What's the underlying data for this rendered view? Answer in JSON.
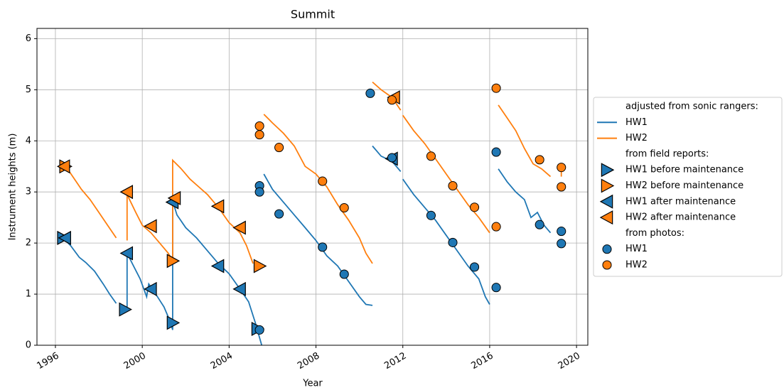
{
  "chart_data": {
    "type": "line",
    "title": "Summit",
    "x_label": "Year",
    "y_label": "Instrument heights (m)",
    "xlim": [
      1995.15,
      2020.52
    ],
    "xticks": [
      1996,
      2000,
      2004,
      2008,
      2012,
      2016,
      2020
    ],
    "ylim": [
      0,
      6.2
    ],
    "yticks": [
      0,
      1,
      2,
      3,
      4,
      5,
      6
    ],
    "grid": true,
    "legend_position": "right",
    "legend_headers": [
      "adjusted from sonic rangers:",
      "from field reports:",
      "from photos:"
    ],
    "series": [
      {
        "name": "HW1",
        "color": "#1f77b4",
        "marker": "line",
        "x": [
          1996.3,
          1996.7,
          1997.1,
          1997.4,
          1997.8,
          1998.2,
          1998.5,
          1998.8,
          null,
          1999.3,
          1999.3,
          1999.6,
          1999.9,
          2000.2,
          2000.3,
          2000.7,
          2001.0,
          2001.3,
          2001.4,
          2001.4,
          2001.6,
          2002.0,
          2002.5,
          2003.0,
          2003.5,
          2004.0,
          2004.5,
          2004.9,
          2005.2,
          2005.5,
          null,
          2005.6,
          2006.0,
          2006.5,
          2007.0,
          2007.5,
          2008.0,
          2008.5,
          2009.0,
          2009.5,
          2010.0,
          2010.3,
          2010.6,
          null,
          2010.6,
          2011.0,
          2011.5,
          2011.9,
          null,
          2012.0,
          2012.5,
          2013.0,
          2013.5,
          2014.0,
          2014.5,
          2015.0,
          2015.5,
          2015.8,
          2016.0,
          null,
          2016.4,
          2016.8,
          2017.2,
          2017.6,
          2017.9,
          2018.2,
          2018.5,
          2018.8
        ],
        "values": [
          2.12,
          1.95,
          1.72,
          1.62,
          1.45,
          1.2,
          1.0,
          0.82,
          null,
          0.75,
          1.8,
          1.55,
          1.3,
          0.95,
          1.2,
          0.95,
          0.75,
          0.45,
          0.3,
          2.82,
          2.55,
          2.3,
          2.1,
          1.85,
          1.6,
          1.4,
          1.1,
          0.85,
          0.45,
          0.0,
          null,
          3.35,
          3.05,
          2.8,
          2.55,
          2.3,
          2.05,
          1.75,
          1.55,
          1.25,
          0.95,
          0.8,
          0.78,
          null,
          3.9,
          3.7,
          3.6,
          3.4,
          null,
          3.25,
          2.95,
          2.7,
          2.45,
          2.15,
          1.85,
          1.55,
          1.3,
          0.95,
          0.8,
          null,
          3.45,
          3.2,
          3.0,
          2.85,
          2.5,
          2.6,
          2.35,
          2.2
        ]
      },
      {
        "name": "HW2",
        "color": "#ff7f0e",
        "marker": "line",
        "x": [
          1996.4,
          1996.8,
          1997.2,
          1997.6,
          1998.0,
          1998.4,
          1998.8,
          null,
          1999.3,
          1999.3,
          1999.7,
          2000.0,
          2000.4,
          2000.8,
          2001.2,
          2001.4,
          2001.4,
          2001.8,
          2002.2,
          2002.6,
          2003.0,
          2003.5,
          2004.0,
          2004.5,
          2004.8,
          2005.1,
          null,
          2005.6,
          2006.0,
          2006.5,
          2007.0,
          2007.5,
          2008.0,
          2008.5,
          2009.0,
          2009.5,
          2010.0,
          2010.3,
          2010.6,
          null,
          2010.6,
          2011.0,
          2011.5,
          2011.9,
          null,
          2012.0,
          2012.5,
          2013.0,
          2013.5,
          2014.0,
          2014.5,
          2015.0,
          2015.5,
          2016.0,
          null,
          2016.4,
          2016.8,
          2017.2,
          2017.6,
          2018.0,
          2018.4,
          2018.8,
          null,
          2019.3,
          2019.3
        ],
        "values": [
          3.55,
          3.3,
          3.05,
          2.85,
          2.6,
          2.35,
          2.1,
          null,
          2.05,
          2.95,
          2.6,
          2.35,
          2.2,
          2.0,
          1.8,
          1.65,
          3.62,
          3.45,
          3.25,
          3.1,
          2.95,
          2.7,
          2.4,
          2.2,
          1.95,
          1.6,
          null,
          4.52,
          4.35,
          4.15,
          3.9,
          3.5,
          3.35,
          3.1,
          2.75,
          2.45,
          2.1,
          1.8,
          1.6,
          null,
          5.15,
          5.0,
          4.85,
          4.6,
          null,
          4.5,
          4.2,
          3.95,
          3.65,
          3.35,
          3.05,
          2.75,
          2.5,
          2.2,
          null,
          4.7,
          4.45,
          4.2,
          3.85,
          3.55,
          3.45,
          3.3,
          null,
          3.5,
          3.3
        ]
      },
      {
        "name": "HW1 before maintenance",
        "color": "#1f77b4",
        "marker": "triangle-right",
        "x": [
          1996.35,
          1999.2,
          2001.4,
          2005.3
        ],
        "values": [
          2.1,
          0.7,
          0.44,
          0.32
        ]
      },
      {
        "name": "HW2 before maintenance",
        "color": "#ff7f0e",
        "marker": "triangle-right",
        "x": [
          1996.45,
          2001.4,
          2005.4
        ],
        "values": [
          3.5,
          1.65,
          1.55
        ]
      },
      {
        "name": "HW1 after maintenance",
        "color": "#1f77b4",
        "marker": "triangle-left",
        "x": [
          1996.45,
          1999.3,
          2000.4,
          2001.4,
          2003.5,
          2004.5,
          2011.5
        ],
        "values": [
          2.1,
          1.8,
          1.1,
          2.8,
          1.55,
          1.1,
          3.65
        ]
      },
      {
        "name": "HW2 after maintenance",
        "color": "#ff7f0e",
        "marker": "triangle-left",
        "x": [
          1996.4,
          1999.3,
          2000.4,
          2001.5,
          2003.5,
          2004.5,
          2011.6
        ],
        "values": [
          3.5,
          3.0,
          2.33,
          2.88,
          2.72,
          2.3,
          4.85
        ]
      },
      {
        "name": "HW1",
        "color": "#1f77b4",
        "marker": "circle",
        "x": [
          2005.4,
          2005.4,
          2005.4,
          2006.3,
          2008.3,
          2009.3,
          2010.5,
          2011.5,
          2013.3,
          2014.3,
          2015.3,
          2016.3,
          2016.3,
          2018.3,
          2019.3,
          2019.3
        ],
        "values": [
          0.3,
          3.12,
          3.0,
          2.57,
          1.92,
          1.39,
          4.93,
          3.67,
          2.54,
          2.01,
          1.53,
          1.13,
          3.78,
          2.36,
          2.23,
          1.99
        ]
      },
      {
        "name": "HW2",
        "color": "#ff7f0e",
        "marker": "circle",
        "x": [
          2005.4,
          2005.4,
          2006.3,
          2008.3,
          2009.3,
          2011.5,
          2013.3,
          2014.3,
          2015.3,
          2016.3,
          2016.3,
          2018.3,
          2019.3,
          2019.3
        ],
        "values": [
          4.29,
          4.12,
          3.87,
          3.21,
          2.69,
          4.8,
          3.7,
          3.12,
          2.7,
          2.32,
          5.03,
          3.63,
          3.48,
          3.1
        ]
      }
    ]
  }
}
